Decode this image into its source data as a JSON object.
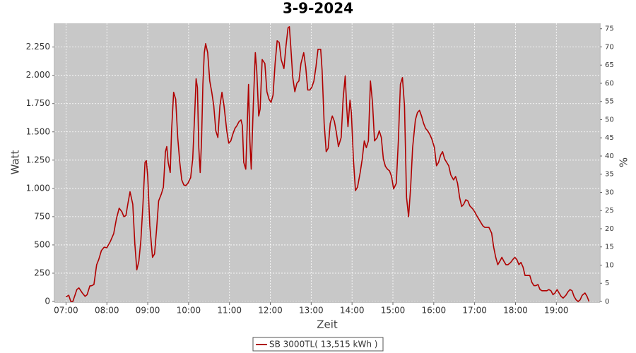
{
  "chart_data": {
    "type": "line",
    "title": "3-9-2024",
    "xlabel": "Zeit",
    "ylabel": "Watt",
    "y2label": "%",
    "x": [
      "07:00",
      "07:04",
      "07:07",
      "07:10",
      "07:16",
      "07:19",
      "07:24",
      "07:28",
      "07:31",
      "07:35",
      "07:38",
      "07:41",
      "07:45",
      "07:48",
      "07:52",
      "07:56",
      "08:00",
      "08:05",
      "08:10",
      "08:14",
      "08:18",
      "08:22",
      "08:25",
      "08:28",
      "08:31",
      "08:34",
      "08:38",
      "08:41",
      "08:44",
      "08:47",
      "08:50",
      "08:53",
      "08:56",
      "08:58",
      "09:00",
      "09:03",
      "09:07",
      "09:10",
      "09:13",
      "09:16",
      "09:20",
      "09:23",
      "09:26",
      "09:28",
      "09:30",
      "09:33",
      "09:35",
      "09:38",
      "09:41",
      "09:44",
      "09:47",
      "09:50",
      "09:53",
      "09:56",
      "09:59",
      "10:03",
      "10:06",
      "10:09",
      "10:11",
      "10:13",
      "10:15",
      "10:17",
      "10:19",
      "10:21",
      "10:23",
      "10:25",
      "10:28",
      "10:31",
      "10:34",
      "10:37",
      "10:40",
      "10:43",
      "10:46",
      "10:49",
      "10:52",
      "10:56",
      "10:59",
      "11:02",
      "11:05",
      "11:08",
      "11:11",
      "11:14",
      "11:17",
      "11:19",
      "11:21",
      "11:24",
      "11:26",
      "11:28",
      "11:30",
      "11:32",
      "11:35",
      "11:38",
      "11:40",
      "11:43",
      "11:45",
      "11:48",
      "11:52",
      "11:55",
      "11:58",
      "12:01",
      "12:04",
      "12:07",
      "12:10",
      "12:13",
      "12:16",
      "12:20",
      "12:23",
      "12:26",
      "12:28",
      "12:30",
      "12:33",
      "12:36",
      "12:39",
      "12:42",
      "12:45",
      "12:49",
      "12:52",
      "12:55",
      "12:58",
      "13:01",
      "13:04",
      "13:07",
      "13:10",
      "13:14",
      "13:16",
      "13:19",
      "13:22",
      "13:25",
      "13:28",
      "13:31",
      "13:34",
      "13:37",
      "13:40",
      "13:44",
      "13:47",
      "13:50",
      "13:52",
      "13:54",
      "13:57",
      "13:59",
      "14:02",
      "14:05",
      "14:08",
      "14:12",
      "14:15",
      "14:18",
      "14:21",
      "14:24",
      "14:27",
      "14:30",
      "14:33",
      "14:37",
      "14:40",
      "14:43",
      "14:46",
      "14:49",
      "14:52",
      "14:55",
      "14:58",
      "15:01",
      "15:05",
      "15:08",
      "15:11",
      "15:14",
      "15:17",
      "15:20",
      "15:23",
      "15:26",
      "15:29",
      "15:33",
      "15:36",
      "15:39",
      "15:42",
      "15:45",
      "15:48",
      "15:51",
      "15:54",
      "15:57",
      "16:01",
      "16:04",
      "16:07",
      "16:10",
      "16:13",
      "16:16",
      "16:19",
      "16:22",
      "16:25",
      "16:29",
      "16:32",
      "16:35",
      "16:38",
      "16:41",
      "16:44",
      "16:47",
      "16:50",
      "16:53",
      "16:57",
      "17:00",
      "17:03",
      "17:06",
      "17:09",
      "17:12",
      "17:15",
      "17:18",
      "17:21",
      "17:25",
      "17:28",
      "17:31",
      "17:34",
      "17:37",
      "17:40",
      "17:43",
      "17:46",
      "17:49",
      "17:53",
      "17:56",
      "17:59",
      "18:02",
      "18:05",
      "18:08",
      "18:11",
      "18:14",
      "18:17",
      "18:21",
      "18:24",
      "18:27",
      "18:30",
      "18:33",
      "18:36",
      "18:39",
      "18:42",
      "18:46",
      "18:49",
      "18:52",
      "18:55",
      "18:58",
      "19:01",
      "19:04",
      "19:07",
      "19:10",
      "19:14",
      "19:17",
      "19:20",
      "19:23",
      "19:26",
      "19:29",
      "19:32",
      "19:35",
      "19:38",
      "19:42",
      "19:45",
      "19:48"
    ],
    "series": [
      {
        "name": "SB 3000TL( 13,515 kWh )",
        "color": "#b00000",
        "values": [
          40,
          55,
          0,
          0,
          106,
          120,
          75,
          45,
          60,
          137,
          140,
          150,
          325,
          370,
          450,
          480,
          475,
          530,
          600,
          730,
          825,
          795,
          750,
          760,
          870,
          970,
          860,
          510,
          280,
          356,
          545,
          860,
          1230,
          1245,
          1100,
          670,
          390,
          420,
          640,
          890,
          950,
          1010,
          1325,
          1370,
          1230,
          1140,
          1510,
          1850,
          1790,
          1450,
          1230,
          1075,
          1030,
          1025,
          1045,
          1095,
          1260,
          1670,
          1970,
          1890,
          1360,
          1140,
          1420,
          1920,
          2200,
          2280,
          2200,
          1950,
          1850,
          1730,
          1510,
          1450,
          1730,
          1850,
          1730,
          1510,
          1400,
          1420,
          1480,
          1530,
          1555,
          1590,
          1605,
          1555,
          1230,
          1170,
          1545,
          1920,
          1420,
          1170,
          1730,
          2200,
          2045,
          1640,
          1700,
          2140,
          2105,
          1855,
          1790,
          1760,
          1825,
          2105,
          2305,
          2290,
          2140,
          2060,
          2260,
          2420,
          2430,
          2260,
          1980,
          1855,
          1930,
          1950,
          2105,
          2200,
          2075,
          1870,
          1870,
          1895,
          1950,
          2075,
          2230,
          2230,
          2045,
          1575,
          1325,
          1355,
          1575,
          1640,
          1595,
          1495,
          1370,
          1450,
          1795,
          1995,
          1730,
          1545,
          1780,
          1670,
          1260,
          980,
          1010,
          1140,
          1260,
          1420,
          1360,
          1420,
          1950,
          1760,
          1420,
          1450,
          1510,
          1450,
          1260,
          1195,
          1170,
          1155,
          1105,
          995,
          1045,
          1420,
          1920,
          1980,
          1730,
          920,
          750,
          1010,
          1360,
          1605,
          1670,
          1690,
          1640,
          1575,
          1530,
          1510,
          1480,
          1440,
          1360,
          1200,
          1230,
          1295,
          1325,
          1260,
          1230,
          1200,
          1120,
          1075,
          1105,
          1045,
          920,
          840,
          860,
          900,
          890,
          845,
          820,
          795,
          760,
          730,
          700,
          670,
          655,
          655,
          655,
          605,
          480,
          390,
          325,
          355,
          390,
          355,
          325,
          325,
          345,
          370,
          390,
          370,
          325,
          345,
          305,
          230,
          230,
          230,
          170,
          140,
          140,
          150,
          105,
          95,
          95,
          95,
          105,
          95,
          60,
          75,
          105,
          75,
          45,
          30,
          55,
          85,
          105,
          95,
          45,
          15,
          0,
          15,
          55,
          75,
          45,
          0
        ]
      }
    ],
    "xlim": [
      "06:44",
      "20:03"
    ],
    "xticks": [
      "07:00",
      "08:00",
      "09:00",
      "10:00",
      "11:00",
      "12:00",
      "13:00",
      "14:00",
      "15:00",
      "16:00",
      "17:00",
      "18:00",
      "19:00"
    ],
    "ylim": [
      0,
      2460
    ],
    "yticks": [
      0,
      250,
      500,
      750,
      {
        "value": 1000,
        "label": "1.000"
      },
      {
        "value": 1250,
        "label": "1.250"
      },
      {
        "value": 1500,
        "label": "1.500"
      },
      {
        "value": 1750,
        "label": "1.750"
      },
      {
        "value": 2000,
        "label": "2.000"
      },
      {
        "value": 2250,
        "label": "2.250"
      }
    ],
    "y2lim": [
      0,
      76.5
    ],
    "y2ticks": [
      0,
      5,
      10,
      15,
      20,
      25,
      30,
      35,
      40,
      45,
      50,
      55,
      60,
      65,
      70,
      75
    ],
    "grid": true,
    "legend": "bottom",
    "background": "#c8c8c8"
  }
}
